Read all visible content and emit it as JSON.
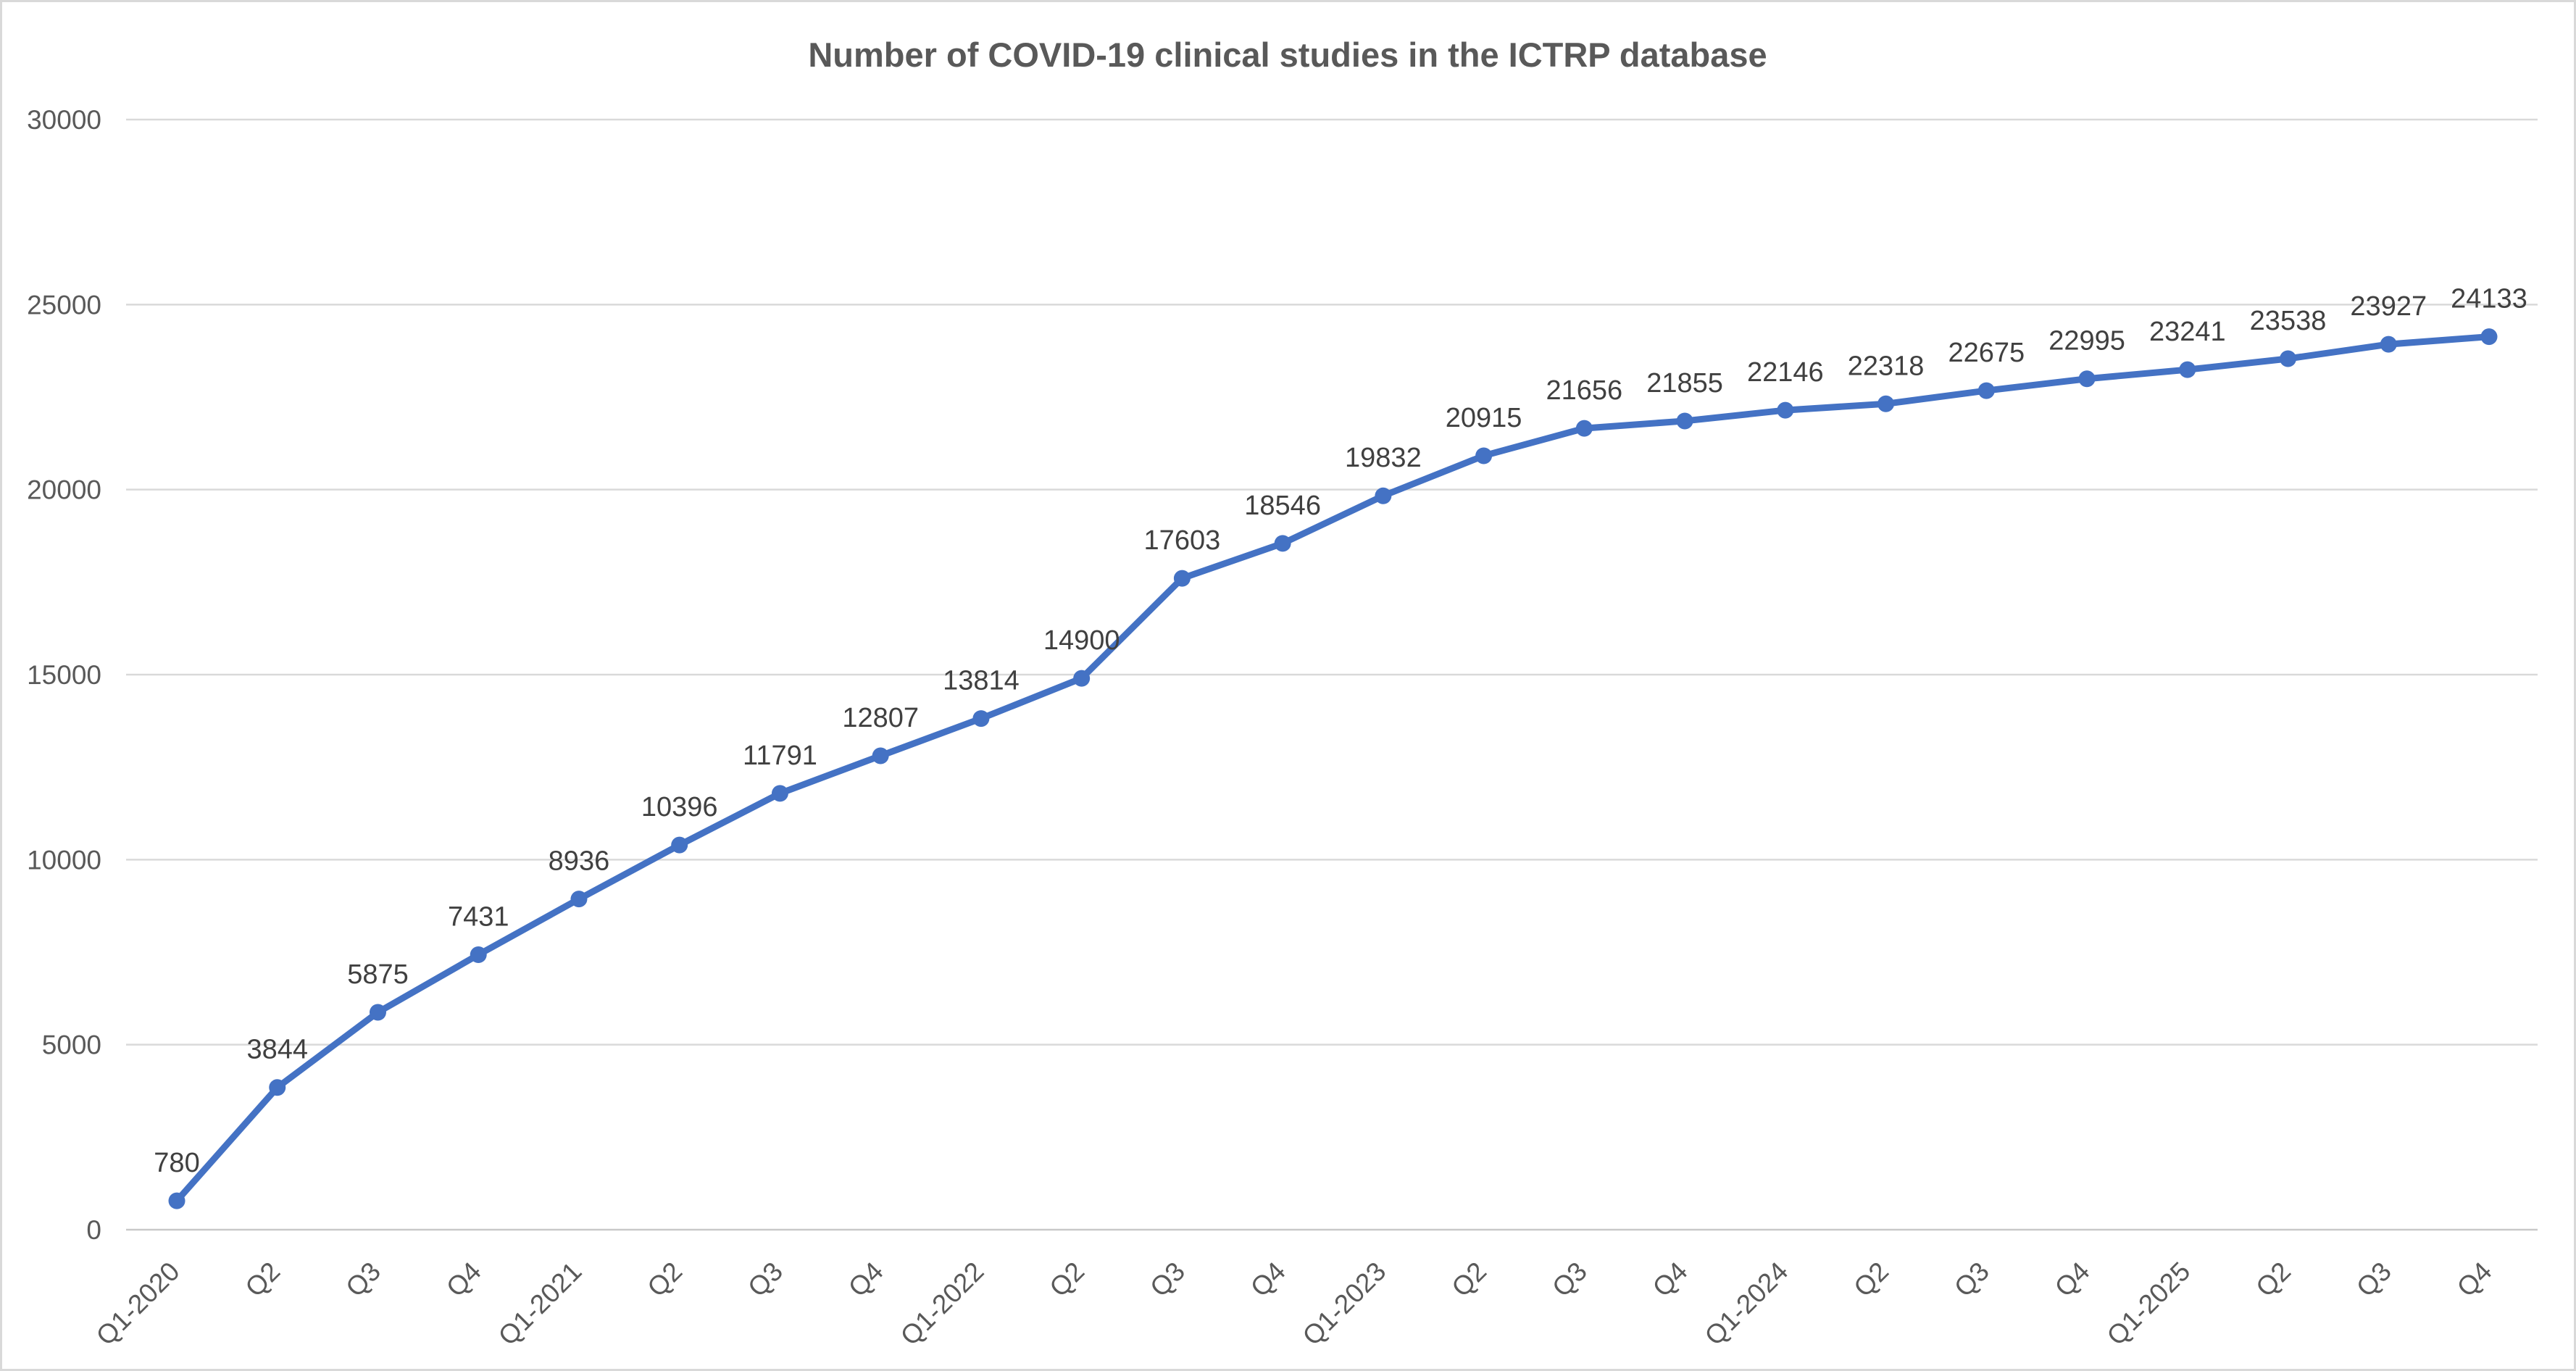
{
  "chart_data": {
    "type": "line",
    "title": "Number of COVID-19 clinical studies in the ICTRP database",
    "categories": [
      "Q1-2020",
      "Q2",
      "Q3",
      "Q4",
      "Q1-2021",
      "Q2",
      "Q3",
      "Q4",
      "Q1-2022",
      "Q2",
      "Q3",
      "Q4",
      "Q1-2023",
      "Q2",
      "Q3",
      "Q4",
      "Q1-2024",
      "Q2",
      "Q3",
      "Q4",
      "Q1-2025",
      "Q2",
      "Q3",
      "Q4"
    ],
    "values": [
      780,
      3844,
      5875,
      7431,
      8936,
      10396,
      11791,
      12807,
      13814,
      14900,
      17603,
      18546,
      19832,
      20915,
      21656,
      21855,
      22146,
      22318,
      22675,
      22995,
      23241,
      23538,
      23927,
      24133
    ],
    "data_labels": [
      780,
      3844,
      5875,
      7431,
      8936,
      10396,
      11791,
      12807,
      13814,
      14900,
      17603,
      18546,
      19832,
      20915,
      21656,
      21855,
      22146,
      22318,
      22675,
      22995,
      23241,
      23538,
      23927,
      24133
    ],
    "xlabel": "",
    "ylabel": "",
    "ylim": [
      0,
      30000
    ],
    "ytick_step": 5000,
    "yticks": [
      0,
      5000,
      10000,
      15000,
      20000,
      25000,
      30000
    ],
    "grid": "horizontal",
    "legend": "none",
    "marker": "circle",
    "colors": {
      "line": "#4472C4",
      "marker": "#4472C4",
      "gridline": "#D9D9D9",
      "axis_line": "#C9C9C9",
      "tick_text": "#595959",
      "data_label_text": "#404040",
      "title_text": "#595959",
      "background": "#FFFFFF",
      "border": "#D9D9D9"
    }
  }
}
